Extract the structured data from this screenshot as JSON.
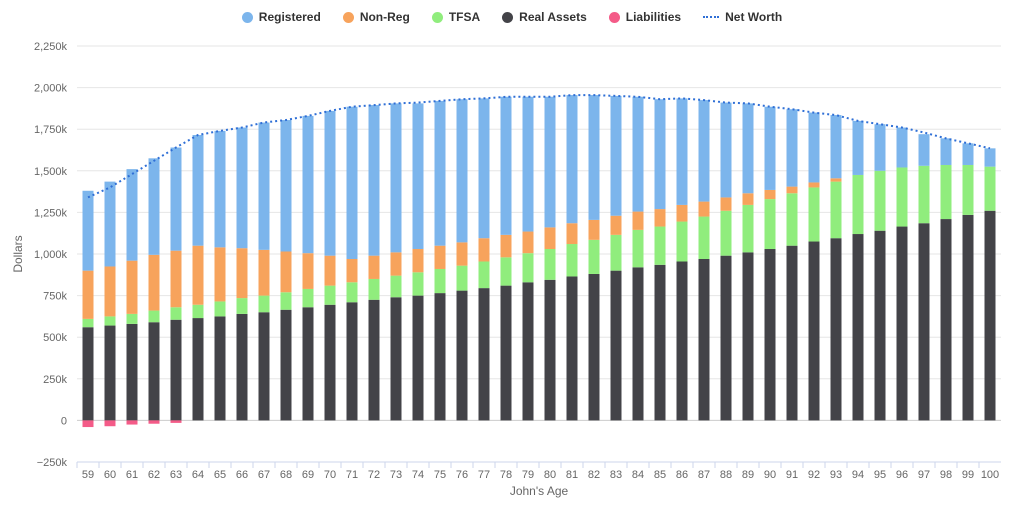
{
  "chart_data": {
    "type": "bar",
    "stacked": true,
    "xlabel": "John's Age",
    "ylabel": "Dollars",
    "ylim": [
      -250000,
      2250000
    ],
    "yticks": [
      "−250k",
      "0",
      "250k",
      "500k",
      "750k",
      "1,000k",
      "1,250k",
      "1,500k",
      "1,750k",
      "2,000k",
      "2,250k"
    ],
    "ytick_values": [
      -250000,
      0,
      250000,
      500000,
      750000,
      1000000,
      1250000,
      1500000,
      1750000,
      2000000,
      2250000
    ],
    "grid": true,
    "legend_position": "top-center",
    "categories": [
      "59",
      "60",
      "61",
      "62",
      "63",
      "64",
      "65",
      "66",
      "67",
      "68",
      "69",
      "70",
      "71",
      "72",
      "73",
      "74",
      "75",
      "76",
      "77",
      "78",
      "79",
      "80",
      "81",
      "82",
      "83",
      "84",
      "85",
      "86",
      "87",
      "88",
      "89",
      "90",
      "91",
      "92",
      "93",
      "94",
      "95",
      "96",
      "97",
      "98",
      "99",
      "100"
    ],
    "series": [
      {
        "name": "Real Assets",
        "color": "#434348",
        "values": [
          560000,
          570000,
          580000,
          590000,
          605000,
          615000,
          625000,
          640000,
          650000,
          665000,
          680000,
          695000,
          710000,
          725000,
          740000,
          750000,
          765000,
          780000,
          795000,
          810000,
          830000,
          845000,
          865000,
          880000,
          900000,
          920000,
          935000,
          955000,
          970000,
          990000,
          1010000,
          1030000,
          1050000,
          1075000,
          1095000,
          1120000,
          1140000,
          1165000,
          1185000,
          1210000,
          1235000,
          1260000
        ]
      },
      {
        "name": "TFSA",
        "color": "#90ed7d",
        "values": [
          50000,
          55000,
          60000,
          70000,
          75000,
          80000,
          90000,
          95000,
          100000,
          105000,
          110000,
          115000,
          120000,
          125000,
          130000,
          140000,
          145000,
          150000,
          160000,
          170000,
          175000,
          185000,
          195000,
          205000,
          215000,
          225000,
          230000,
          240000,
          255000,
          270000,
          285000,
          300000,
          315000,
          325000,
          340000,
          355000,
          360000,
          355000,
          345000,
          325000,
          300000,
          265000
        ]
      },
      {
        "name": "Non-Reg",
        "color": "#f7a35c",
        "values": [
          290000,
          300000,
          320000,
          335000,
          340000,
          355000,
          325000,
          300000,
          275000,
          245000,
          215000,
          180000,
          140000,
          140000,
          140000,
          140000,
          140000,
          140000,
          140000,
          135000,
          130000,
          130000,
          125000,
          120000,
          115000,
          110000,
          105000,
          100000,
          90000,
          80000,
          70000,
          55000,
          40000,
          30000,
          20000,
          0,
          0,
          0,
          0,
          0,
          0,
          0
        ]
      },
      {
        "name": "Liabilities",
        "color": "#f45b88",
        "values": [
          -40000,
          -35000,
          -25000,
          -20000,
          -15000,
          0,
          0,
          0,
          0,
          0,
          0,
          0,
          0,
          0,
          0,
          0,
          0,
          0,
          0,
          0,
          0,
          0,
          0,
          0,
          0,
          0,
          0,
          0,
          0,
          0,
          0,
          0,
          0,
          0,
          0,
          0,
          0,
          0,
          0,
          0,
          0,
          0
        ]
      },
      {
        "name": "Registered",
        "color": "#7cb5ec",
        "values": [
          480000,
          510000,
          550000,
          580000,
          620000,
          665000,
          700000,
          725000,
          765000,
          790000,
          825000,
          870000,
          915000,
          905000,
          895000,
          875000,
          870000,
          860000,
          840000,
          830000,
          810000,
          785000,
          770000,
          750000,
          720000,
          690000,
          660000,
          640000,
          610000,
          570000,
          540000,
          500000,
          465000,
          420000,
          380000,
          325000,
          280000,
          240000,
          190000,
          160000,
          130000,
          110000
        ]
      },
      {
        "name": "Net Worth",
        "type": "line",
        "color": "#2f6fd6",
        "values": [
          1340000,
          1400000,
          1480000,
          1560000,
          1640000,
          1715000,
          1740000,
          1760000,
          1790000,
          1805000,
          1830000,
          1860000,
          1885000,
          1895000,
          1905000,
          1910000,
          1920000,
          1930000,
          1935000,
          1945000,
          1945000,
          1945000,
          1955000,
          1955000,
          1950000,
          1945000,
          1930000,
          1935000,
          1925000,
          1910000,
          1905000,
          1885000,
          1870000,
          1850000,
          1835000,
          1800000,
          1780000,
          1760000,
          1730000,
          1695000,
          1665000,
          1635000
        ]
      }
    ]
  },
  "legend": {
    "items": [
      {
        "label": "Registered",
        "color": "#7cb5ec"
      },
      {
        "label": "Non-Reg",
        "color": "#f7a35c"
      },
      {
        "label": "TFSA",
        "color": "#90ed7d"
      },
      {
        "label": "Real Assets",
        "color": "#434348"
      },
      {
        "label": "Liabilities",
        "color": "#f45b88"
      },
      {
        "label": "Net Worth",
        "line": true
      }
    ]
  }
}
